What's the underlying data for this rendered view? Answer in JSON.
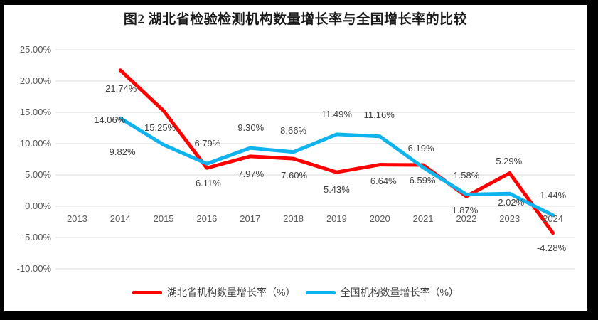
{
  "title": "图2  湖北省检验检测机构数量增长率与全国增长率的比较",
  "colors": {
    "hubei": "#FF0000",
    "national": "#0FB3EE",
    "grid": "#D9D9D9",
    "axis_text": "#595959",
    "label_text": "#404040",
    "background": "#FFFFFF",
    "frame": "#000000"
  },
  "chart_data": {
    "type": "line",
    "categories": [
      "2013",
      "2014",
      "2015",
      "2016",
      "2017",
      "2018",
      "2019",
      "2020",
      "2021",
      "2022",
      "2023",
      "2024"
    ],
    "series": [
      {
        "name": "湖北省机构数量增长率（%）",
        "color_key": "hubei",
        "values": [
          null,
          21.74,
          15.25,
          6.11,
          7.97,
          7.6,
          5.43,
          6.64,
          6.59,
          1.58,
          5.29,
          -4.28
        ]
      },
      {
        "name": "全国机构数量增长率（%）",
        "color_key": "national",
        "values": [
          null,
          14.06,
          9.82,
          6.79,
          9.3,
          8.66,
          11.49,
          11.16,
          6.19,
          1.87,
          2.02,
          -1.44
        ]
      }
    ],
    "ylim": [
      -10,
      25
    ],
    "ytick_step": 5,
    "ytick_labels": [
      "25.00%",
      "20.00%",
      "15.00%",
      "10.00%",
      "5.00%",
      "0.00%",
      "-5.00%",
      "-10.00%"
    ],
    "data_label_format": "0.00%",
    "grid": true,
    "legend_position": "bottom"
  }
}
